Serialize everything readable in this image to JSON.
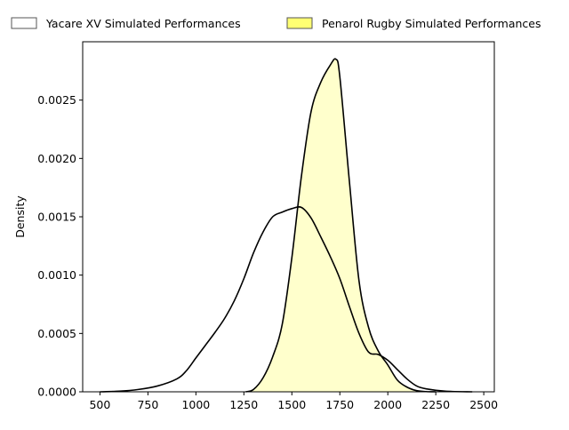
{
  "chart_data": {
    "type": "area",
    "title": "",
    "xlabel": "",
    "ylabel": "Density",
    "xlim": [
      410,
      2555
    ],
    "ylim": [
      0,
      0.003
    ],
    "x_ticks": [
      500,
      750,
      1000,
      1250,
      1500,
      1750,
      2000,
      2250,
      2500
    ],
    "y_ticks": [
      0,
      0.0005,
      0.001,
      0.0015,
      0.002,
      0.0025
    ],
    "y_tick_labels": [
      "0.0000",
      "0.0005",
      "0.0010",
      "0.0015",
      "0.0020",
      "0.0025"
    ],
    "grid": false,
    "legend_position": "top, outside plot",
    "series": [
      {
        "name": "Yacare XV Simulated Performances",
        "fill": "#ffffff",
        "legend_swatch_fill": "#ffffff",
        "edge": "#000000",
        "x": [
          500,
          600,
          700,
          800,
          900,
          950,
          1000,
          1050,
          1100,
          1150,
          1200,
          1250,
          1300,
          1350,
          1400,
          1450,
          1500,
          1550,
          1600,
          1650,
          1700,
          1750,
          1800,
          1850,
          1900,
          1950,
          2000,
          2050,
          2100,
          2150,
          2200,
          2300,
          2440
        ],
        "values": [
          0,
          5e-06,
          2e-05,
          5e-05,
          0.00011,
          0.00018,
          0.00029,
          0.0004,
          0.00051,
          0.00063,
          0.00078,
          0.00097,
          0.00119,
          0.00137,
          0.0015,
          0.00154,
          0.00157,
          0.00158,
          0.00149,
          0.00133,
          0.00116,
          0.00097,
          0.00073,
          0.0005,
          0.00034,
          0.00032,
          0.00027,
          0.00019,
          0.00011,
          5e-05,
          2.5e-05,
          5e-06,
          0
        ]
      },
      {
        "name": "Penarol Rugby Simulated Performances",
        "fill": "#ffffcc",
        "legend_swatch_fill": "#ffff73",
        "edge": "#000000",
        "x": [
          1260,
          1300,
          1350,
          1400,
          1450,
          1500,
          1550,
          1600,
          1650,
          1700,
          1730,
          1750,
          1800,
          1850,
          1900,
          1950,
          2000,
          2050,
          2100,
          2150,
          2200,
          2250
        ],
        "values": [
          0,
          2e-05,
          0.00012,
          0.0003,
          0.00058,
          0.00115,
          0.00185,
          0.0024,
          0.00265,
          0.0028,
          0.00285,
          0.0027,
          0.0018,
          0.00095,
          0.00055,
          0.00035,
          0.00023,
          0.0001,
          4e-05,
          1e-05,
          2e-06,
          0
        ]
      }
    ]
  }
}
